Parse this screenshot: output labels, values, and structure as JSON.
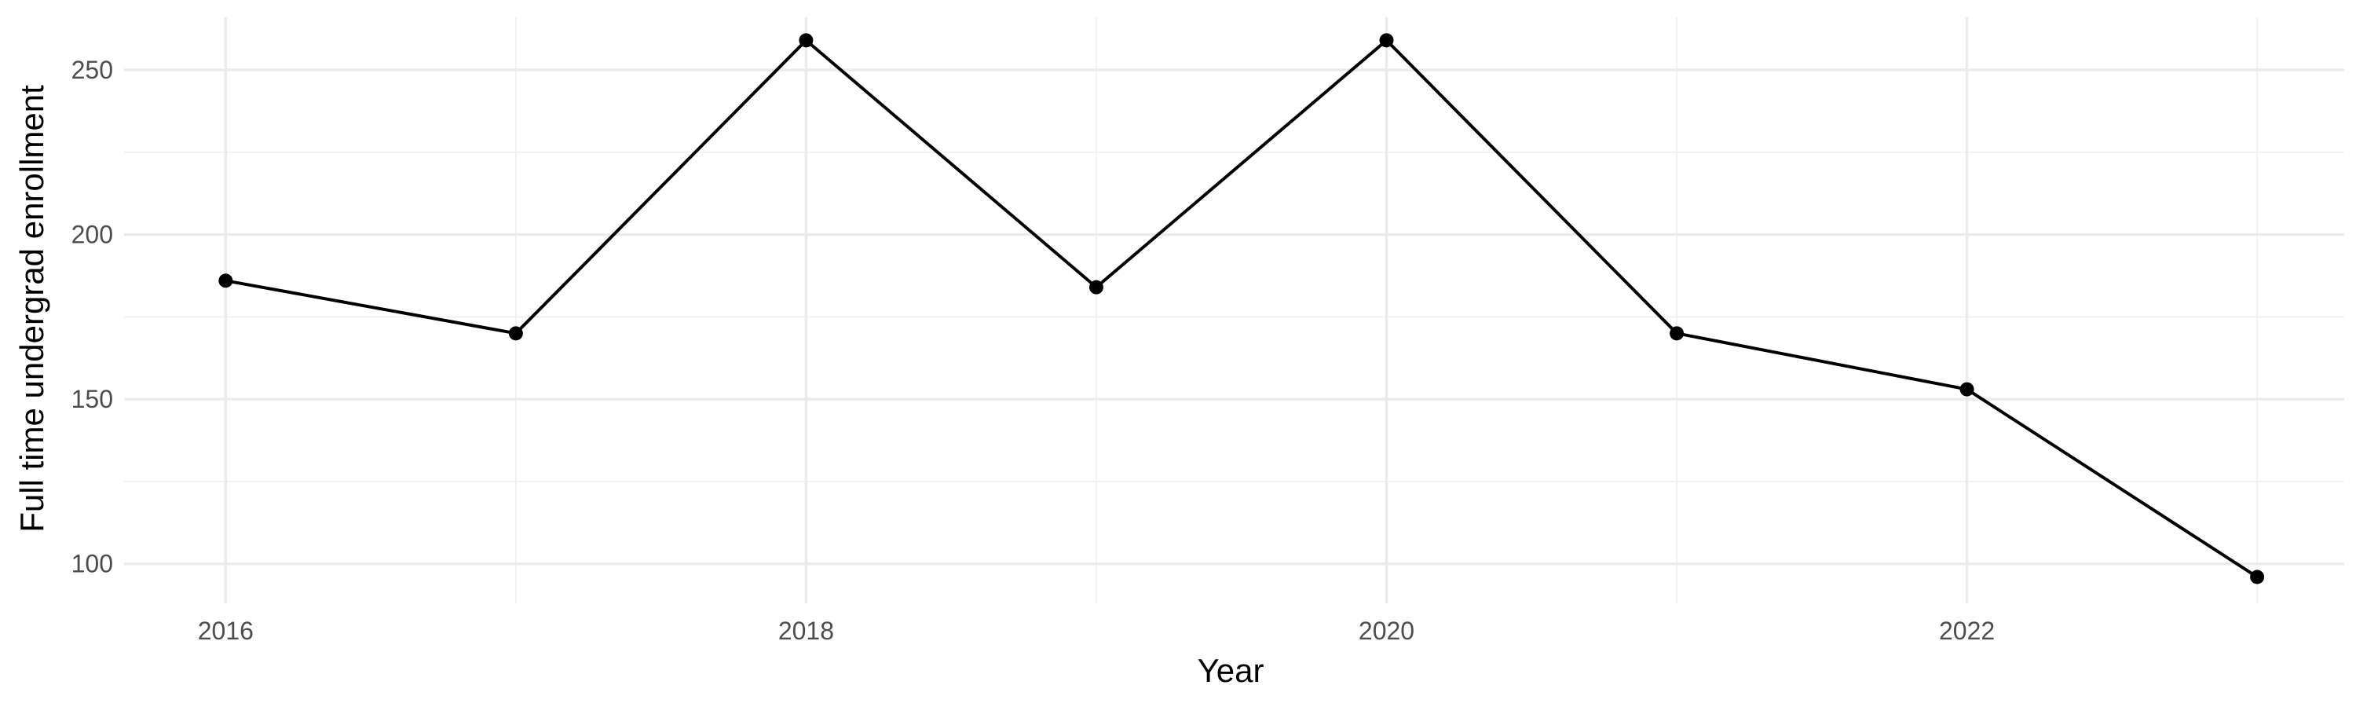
{
  "chart_data": {
    "type": "line",
    "title": "",
    "xlabel": "Year",
    "ylabel": "Full time undergrad enrollment",
    "x": [
      2016,
      2017,
      2018,
      2019,
      2020,
      2021,
      2022,
      2023
    ],
    "series": [
      {
        "values": [
          186,
          170,
          259,
          184,
          259,
          170,
          153,
          96
        ]
      }
    ],
    "xlim": [
      2015.65,
      2023.3
    ],
    "ylim": [
      88,
      266
    ],
    "x_ticks": [
      2016,
      2018,
      2020,
      2022
    ],
    "y_ticks": [
      100,
      150,
      200,
      250
    ],
    "grid": true,
    "legend": "none",
    "colors": {
      "line": "#000000",
      "grid_major": "#ebebeb",
      "grid_minor": "#f2f2f2",
      "tick_text": "#4d4d4d"
    }
  }
}
